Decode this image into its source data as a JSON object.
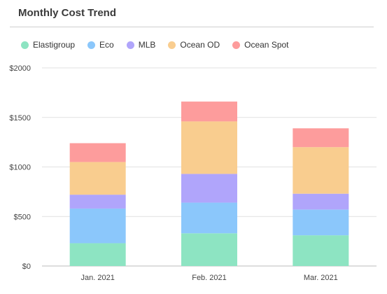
{
  "title": "Monthly Cost Trend",
  "chart_data": {
    "type": "bar",
    "stacked": true,
    "title": "Monthly Cost Trend",
    "categories": [
      "Jan. 2021",
      "Feb. 2021",
      "Mar. 2021"
    ],
    "series": [
      {
        "name": "Elastigroup",
        "color": "#8de4c2",
        "values": [
          230,
          330,
          310
        ]
      },
      {
        "name": "Eco",
        "color": "#8bc7fb",
        "values": [
          350,
          310,
          260
        ]
      },
      {
        "name": "MLB",
        "color": "#b0a5fb",
        "values": [
          140,
          290,
          160
        ]
      },
      {
        "name": "Ocean OD",
        "color": "#f9cd8f",
        "values": [
          330,
          530,
          470
        ]
      },
      {
        "name": "Ocean Spot",
        "color": "#fd9c9c",
        "values": [
          190,
          200,
          190
        ]
      }
    ],
    "ylim": [
      0,
      2000
    ],
    "yticks": [
      0,
      500,
      1000,
      1500,
      2000
    ],
    "ytick_labels": [
      "$0",
      "$500",
      "$1000",
      "$1500",
      "$2000"
    ],
    "grid": true,
    "legend_position": "top-left"
  }
}
